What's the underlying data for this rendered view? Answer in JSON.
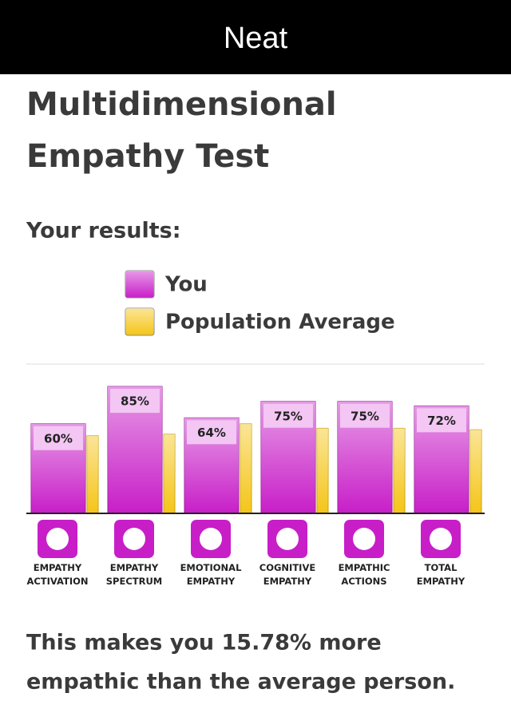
{
  "header": {
    "title": "Neat"
  },
  "page": {
    "title_lines": [
      "Multidimensional",
      "Empathy Test"
    ],
    "subtitle": "Your results:",
    "footer_lines": [
      "This makes you 15.78% more",
      "empathic than the average person."
    ]
  },
  "chart_data": {
    "type": "bar",
    "categories": [
      "EMPATHY ACTIVATION",
      "EMPATHY SPECTRUM",
      "EMOTIONAL EMPATHY",
      "COGNITIVE EMPATHY",
      "EMPATHIC ACTIONS",
      "TOTAL EMPATHY"
    ],
    "series": [
      {
        "name": "You",
        "color": "#c81ec8",
        "values": [
          60,
          85,
          64,
          75,
          75,
          72
        ],
        "value_labels": [
          "60%",
          "85%",
          "64%",
          "75%",
          "75%",
          "72%"
        ]
      },
      {
        "name": "Population Average",
        "color": "#f5c518",
        "values": [
          52,
          53,
          60,
          57,
          57,
          56
        ]
      }
    ],
    "ylim": [
      0,
      100
    ]
  }
}
